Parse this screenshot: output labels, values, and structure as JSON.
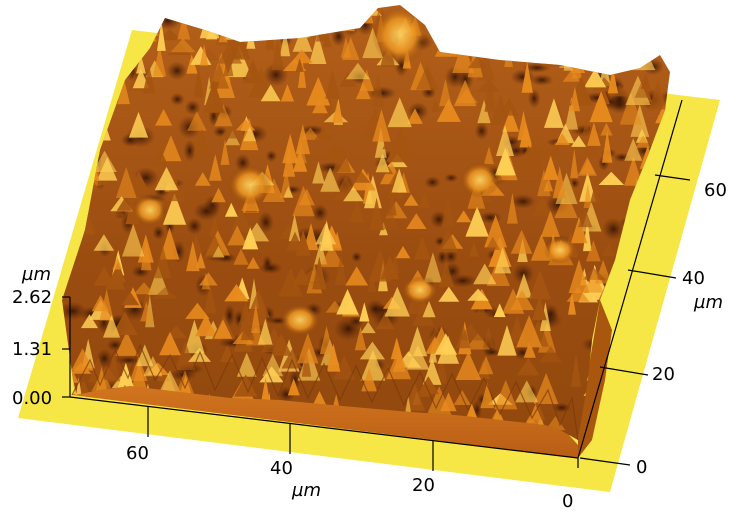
{
  "colors": {
    "base_plane": "#f6e646",
    "side_face": "#c9691c",
    "side_face_dark": "#a2520f",
    "surface_dark": "#4a1f06",
    "surface_mid": "#a55510",
    "surface_light": "#e88b1e",
    "surface_peak": "#ffcf55",
    "axis_line": "#000000"
  },
  "surface": {
    "type": "afm-3d-topography"
  },
  "axes": {
    "z": {
      "unit": "µm",
      "ticks": [
        "2.62",
        "1.31",
        "0.00"
      ]
    },
    "front": {
      "unit": "µm",
      "ticks": [
        "60",
        "40",
        "20",
        "0"
      ]
    },
    "right": {
      "unit": "µm",
      "ticks": [
        "0",
        "20",
        "40",
        "60"
      ]
    }
  }
}
